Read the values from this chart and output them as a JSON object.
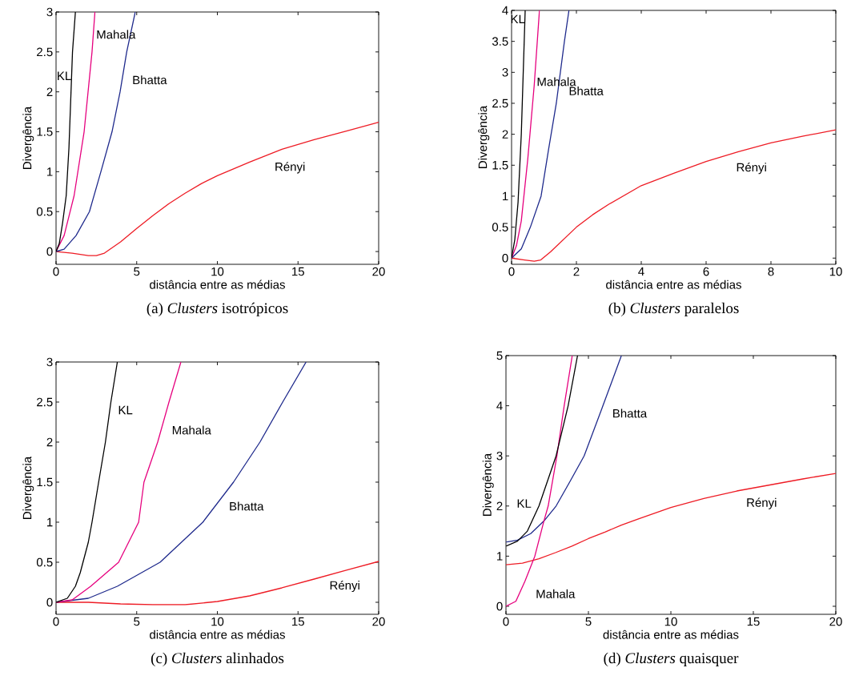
{
  "chart_data": [
    {
      "type": "line",
      "title": "(a) *Clusters* isotrópicos",
      "xlabel": "distância entre as médias",
      "ylabel": "Divergência",
      "xlim": [
        0,
        20
      ],
      "ylim": [
        -0.16,
        3
      ],
      "xticks": [
        0,
        5,
        10,
        15,
        20
      ],
      "yticks": [
        0,
        0.5,
        1,
        1.5,
        2,
        2.5,
        3
      ],
      "series": [
        {
          "name": "KL",
          "color": "#000000",
          "x": [
            0,
            0.2,
            0.4,
            0.63,
            0.8,
            1.02,
            1.2
          ],
          "values": [
            0,
            0.1,
            0.35,
            0.7,
            1.3,
            2.5,
            3
          ]
        },
        {
          "name": "Mahala",
          "color": "#e6007e",
          "x": [
            0,
            0.5,
            1.12,
            1.74,
            2.23,
            2.41
          ],
          "values": [
            0,
            0.2,
            0.7,
            1.5,
            2.5,
            3
          ]
        },
        {
          "name": "Bhatta",
          "color": "#1f2a8c",
          "x": [
            0,
            0.5,
            1.24,
            2.07,
            2.78,
            3.47,
            3.97,
            4.38,
            4.91
          ],
          "values": [
            0,
            0.03,
            0.2,
            0.5,
            1,
            1.5,
            2,
            2.5,
            3
          ]
        },
        {
          "name": "Rényi",
          "color": "#ee1c25",
          "x": [
            0,
            1,
            2,
            2.5,
            3,
            4,
            5,
            6,
            7,
            8,
            9,
            10,
            12,
            14,
            16,
            18,
            20
          ],
          "values": [
            0,
            -0.02,
            -0.05,
            -0.05,
            -0.02,
            0.12,
            0.29,
            0.45,
            0.6,
            0.73,
            0.85,
            0.95,
            1.12,
            1.28,
            1.4,
            1.51,
            1.62
          ]
        }
      ]
    },
    {
      "type": "line",
      "title": "(b) *Clusters* paralelos",
      "xlabel": "distância entre as médias",
      "ylabel": "Divergência",
      "xlim": [
        0,
        10
      ],
      "ylim": [
        -0.1,
        4
      ],
      "xticks": [
        0,
        2,
        4,
        6,
        8,
        10
      ],
      "yticks": [
        0,
        0.5,
        1,
        1.5,
        2,
        2.5,
        3,
        3.5,
        4
      ],
      "series": [
        {
          "name": "KL",
          "color": "#000000",
          "x": [
            0,
            0.1,
            0.2,
            0.3,
            0.42
          ],
          "values": [
            0,
            0.3,
            0.9,
            2,
            4
          ]
        },
        {
          "name": "Mahala",
          "color": "#e6007e",
          "x": [
            0,
            0.15,
            0.3,
            0.5,
            0.7,
            0.86
          ],
          "values": [
            0,
            0.2,
            0.6,
            1.6,
            2.8,
            4
          ]
        },
        {
          "name": "Bhatta",
          "color": "#1f2a8c",
          "x": [
            0,
            0.3,
            0.58,
            0.91,
            1.14,
            1.38,
            1.63,
            1.77
          ],
          "values": [
            0,
            0.15,
            0.5,
            1,
            1.75,
            2.5,
            3.5,
            4
          ]
        },
        {
          "name": "Rényi",
          "color": "#ee1c25",
          "x": [
            0,
            0.4,
            0.7,
            0.9,
            1.2,
            1.6,
            2,
            2.5,
            3,
            4,
            5,
            6,
            7,
            8,
            9,
            10
          ],
          "values": [
            0,
            -0.03,
            -0.05,
            -0.03,
            0.1,
            0.3,
            0.5,
            0.7,
            0.87,
            1.17,
            1.37,
            1.56,
            1.72,
            1.86,
            1.97,
            2.07
          ]
        }
      ]
    },
    {
      "type": "line",
      "title": "(c) *Clusters* alinhados",
      "xlabel": "distância entre as médias",
      "ylabel": "Divergência",
      "xlim": [
        0,
        20
      ],
      "ylim": [
        -0.15,
        3
      ],
      "xticks": [
        0,
        5,
        10,
        15,
        20
      ],
      "yticks": [
        0,
        0.5,
        1,
        1.5,
        2,
        2.5,
        3
      ],
      "series": [
        {
          "name": "KL",
          "color": "#000000",
          "x": [
            0,
            0.7,
            1.2,
            1.5,
            2,
            2.23,
            2.64,
            3.06,
            3.4,
            3.8
          ],
          "values": [
            0,
            0.05,
            0.2,
            0.37,
            0.75,
            1,
            1.5,
            2,
            2.5,
            3
          ]
        },
        {
          "name": "Mahala",
          "color": "#e6007e",
          "x": [
            0,
            1,
            2.15,
            3.88,
            5.12,
            5.45,
            6.3,
            7.0,
            7.74
          ],
          "values": [
            0,
            0.03,
            0.2,
            0.5,
            1,
            1.5,
            2,
            2.5,
            3
          ]
        },
        {
          "name": "Bhatta",
          "color": "#1f2a8c",
          "x": [
            0,
            2,
            3.8,
            6.45,
            9.1,
            11,
            12.64,
            14.05,
            15.5
          ],
          "values": [
            0,
            0.05,
            0.2,
            0.5,
            1,
            1.5,
            2,
            2.5,
            3
          ]
        },
        {
          "name": "Rényi",
          "color": "#ee1c25",
          "x": [
            0,
            2,
            4,
            6,
            8,
            10,
            12,
            14,
            16,
            18,
            20
          ],
          "values": [
            0,
            0,
            -0.02,
            -0.03,
            -0.03,
            0.01,
            0.08,
            0.18,
            0.29,
            0.4,
            0.51
          ]
        }
      ]
    },
    {
      "type": "line",
      "title": "(d) *Clusters* quaisquer",
      "xlabel": "distância entre as médias",
      "ylabel": "Divergência",
      "xlim": [
        0,
        20
      ],
      "ylim": [
        -0.16,
        5
      ],
      "xticks": [
        0,
        5,
        10,
        15,
        20
      ],
      "yticks": [
        0,
        1,
        2,
        3,
        4,
        5
      ],
      "series": [
        {
          "name": "KL",
          "color": "#000000",
          "x": [
            0,
            0.7,
            1.3,
            2,
            3.04,
            3.77,
            4.34
          ],
          "values": [
            1.2,
            1.3,
            1.5,
            2,
            3,
            4,
            5
          ]
        },
        {
          "name": "Mahala",
          "color": "#e6007e",
          "x": [
            0,
            0.6,
            1.15,
            1.75,
            2.3,
            2.56,
            3.09,
            3.53,
            4.02
          ],
          "values": [
            0,
            0.1,
            0.5,
            1,
            1.7,
            2,
            3,
            4,
            5
          ]
        },
        {
          "name": "Bhatta",
          "color": "#1f2a8c",
          "x": [
            0,
            0.7,
            1.5,
            2.3,
            3.04,
            3.9,
            4.74,
            5.88,
            7.0
          ],
          "values": [
            1.28,
            1.32,
            1.45,
            1.7,
            2,
            2.5,
            3,
            4,
            5
          ]
        },
        {
          "name": "Rényi",
          "color": "#ee1c25",
          "x": [
            0,
            1,
            2,
            3,
            4,
            5,
            6,
            7,
            8,
            10,
            12,
            14,
            16,
            18,
            20
          ],
          "values": [
            0.83,
            0.86,
            0.95,
            1.07,
            1.2,
            1.35,
            1.48,
            1.62,
            1.74,
            1.97,
            2.15,
            2.3,
            2.42,
            2.54,
            2.65
          ]
        }
      ]
    }
  ]
}
